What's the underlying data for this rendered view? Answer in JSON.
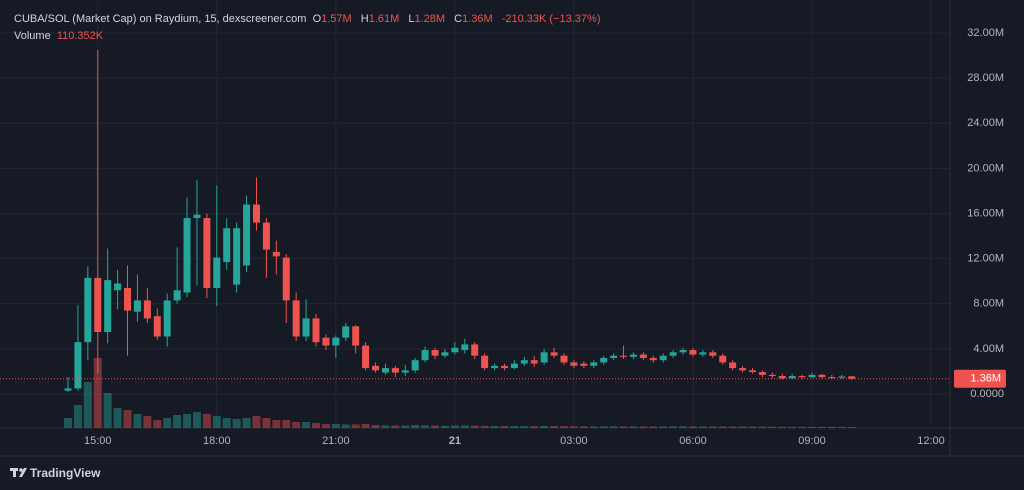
{
  "chart_data": {
    "type": "candlestick",
    "header": {
      "title": "CUBA/SOL (Market Cap) on Raydium, 15, dexscreener.com",
      "open_label": "O",
      "open": "1.57M",
      "high_label": "H",
      "high": "1.61M",
      "low_label": "L",
      "low": "1.28M",
      "close_label": "C",
      "close": "1.36M",
      "change": "-210.33K (−13.37%)",
      "volume_label": "Volume",
      "volume": "110.352K"
    },
    "categories": [
      null,
      null,
      null,
      "15:00",
      null,
      null,
      null,
      null,
      null,
      null,
      null,
      null,
      null,
      null,
      null,
      "18:00",
      null,
      null,
      null,
      null,
      null,
      null,
      null,
      null,
      null,
      null,
      null,
      "21:00",
      null,
      null,
      null,
      null,
      null,
      null,
      null,
      null,
      null,
      null,
      null,
      "21",
      null,
      null,
      null,
      null,
      null,
      null,
      null,
      null,
      null,
      null,
      null,
      "03:00",
      null,
      null,
      null,
      null,
      null,
      null,
      null,
      null,
      null,
      null,
      null,
      "06:00",
      null,
      null,
      null,
      null,
      null,
      null,
      null,
      null,
      null,
      null,
      null,
      "09:00",
      null,
      null,
      null,
      null,
      null,
      null,
      null,
      null,
      null,
      null,
      null,
      "12:00"
    ],
    "open": [
      0.3,
      0.5,
      4.6,
      10.3,
      5.5,
      9.2,
      9.4,
      7.3,
      8.3,
      6.9,
      5.1,
      8.3,
      9.0,
      15.6,
      15.6,
      9.4,
      11.7,
      9.7,
      11.4,
      16.8,
      15.2,
      12.6,
      12.1,
      8.3,
      5.1,
      6.7,
      5.0,
      4.3,
      5.0,
      6.0,
      4.3,
      2.5,
      1.9,
      2.3,
      1.9,
      2.1,
      3.0,
      3.9,
      3.4,
      3.7,
      3.9,
      4.4,
      3.4,
      2.3,
      2.5,
      2.3,
      2.7,
      3.0,
      2.8,
      3.7,
      3.4,
      2.8,
      2.7,
      2.5,
      2.8,
      3.2,
      3.4,
      3.3,
      3.5,
      3.2,
      3.0,
      3.4,
      3.7,
      3.9,
      3.5,
      3.7,
      3.4,
      2.8,
      2.3,
      2.1,
      1.95,
      1.7,
      1.6,
      1.4,
      1.6,
      1.5,
      1.7,
      1.5,
      1.45,
      1.57,
      null,
      null,
      null,
      null,
      null,
      null,
      null,
      null
    ],
    "high": [
      1.5,
      7.9,
      11.3,
      30.5,
      12.9,
      11.0,
      11.4,
      10.6,
      9.4,
      7.6,
      8.9,
      13.0,
      17.4,
      19.0,
      16.0,
      18.5,
      15.6,
      15.2,
      17.6,
      19.2,
      15.6,
      13.6,
      12.4,
      9.0,
      8.4,
      7.1,
      5.3,
      5.2,
      6.3,
      6.1,
      4.6,
      2.8,
      2.7,
      2.5,
      2.6,
      3.2,
      4.2,
      4.1,
      4.0,
      4.6,
      4.9,
      4.6,
      3.6,
      2.7,
      2.7,
      3.0,
      3.3,
      3.4,
      4.0,
      4.1,
      3.6,
      3.0,
      2.9,
      3.0,
      3.4,
      3.6,
      4.3,
      3.7,
      3.7,
      3.4,
      3.6,
      3.9,
      4.1,
      4.1,
      3.9,
      3.9,
      3.6,
      3.0,
      2.5,
      2.3,
      2.1,
      1.9,
      1.8,
      1.8,
      1.7,
      1.9,
      1.8,
      1.7,
      1.7,
      1.61,
      null,
      null,
      null,
      null,
      null,
      null,
      null,
      null
    ],
    "low": [
      0.2,
      0.3,
      3.0,
      1.8,
      4.5,
      7.5,
      3.4,
      6.4,
      6.3,
      4.8,
      4.2,
      8.0,
      8.6,
      9.6,
      8.5,
      7.8,
      11.0,
      9.0,
      10.8,
      14.5,
      10.3,
      10.6,
      6.3,
      4.7,
      4.7,
      4.2,
      3.9,
      3.2,
      4.7,
      3.6,
      2.1,
      1.9,
      1.7,
      1.5,
      1.6,
      1.9,
      2.8,
      3.1,
      3.2,
      3.5,
      3.6,
      3.1,
      2.1,
      2.1,
      2.1,
      2.2,
      2.5,
      2.4,
      2.6,
      3.2,
      2.6,
      2.3,
      2.3,
      2.3,
      2.6,
      3.0,
      3.1,
      3.1,
      3.0,
      2.8,
      2.8,
      3.2,
      3.5,
      3.3,
      3.3,
      3.2,
      2.6,
      2.1,
      1.9,
      1.8,
      1.5,
      1.4,
      1.3,
      1.3,
      1.3,
      1.4,
      1.4,
      1.3,
      1.35,
      1.28,
      null,
      null,
      null,
      null,
      null,
      null,
      null,
      null
    ],
    "close": [
      0.5,
      4.6,
      10.3,
      5.5,
      10.1,
      9.8,
      7.4,
      8.3,
      6.7,
      5.1,
      8.3,
      9.2,
      15.6,
      15.9,
      9.4,
      12.1,
      14.7,
      14.7,
      16.8,
      15.2,
      12.8,
      12.2,
      8.3,
      5.1,
      6.7,
      4.6,
      4.3,
      5.0,
      6.0,
      4.3,
      2.3,
      2.1,
      2.3,
      1.9,
      2.1,
      3.0,
      3.9,
      3.4,
      3.7,
      4.1,
      4.4,
      3.4,
      2.3,
      2.5,
      2.3,
      2.7,
      3.0,
      2.7,
      3.7,
      3.4,
      2.8,
      2.5,
      2.5,
      2.8,
      3.2,
      3.4,
      3.3,
      3.5,
      3.2,
      3.0,
      3.4,
      3.7,
      3.9,
      3.5,
      3.7,
      3.4,
      2.8,
      2.3,
      2.1,
      1.95,
      1.7,
      1.6,
      1.4,
      1.6,
      1.5,
      1.7,
      1.5,
      1.45,
      1.55,
      1.36,
      null,
      null,
      null,
      null,
      null,
      null,
      null,
      null
    ],
    "volume": [
      1000,
      2300,
      4600,
      7000,
      3500,
      2000,
      1800,
      1400,
      1200,
      800,
      1000,
      1300,
      1400,
      1600,
      1400,
      1200,
      1000,
      900,
      1000,
      1200,
      1000,
      800,
      800,
      600,
      600,
      500,
      400,
      400,
      350,
      350,
      400,
      300,
      250,
      250,
      250,
      300,
      280,
      250,
      220,
      250,
      260,
      240,
      220,
      200,
      200,
      200,
      190,
      180,
      200,
      190,
      180,
      170,
      170,
      160,
      170,
      170,
      160,
      160,
      150,
      150,
      160,
      170,
      170,
      160,
      150,
      150,
      150,
      140,
      140,
      130,
      130,
      130,
      120,
      120,
      120,
      120,
      115,
      115,
      112,
      110.352,
      null,
      null,
      null,
      null,
      null,
      null,
      null,
      null
    ],
    "up_color": "#26a69a",
    "down_color": "#ef5350",
    "ylim": [
      -3.01,
      34.22
    ],
    "yticks": [
      {
        "value": 0,
        "label": "0.0000"
      },
      {
        "value": 4,
        "label": "4.00M"
      },
      {
        "value": 8,
        "label": "8.00M"
      },
      {
        "value": 12,
        "label": "12.00M"
      },
      {
        "value": 16,
        "label": "16.00M"
      },
      {
        "value": 20,
        "label": "20.00M"
      },
      {
        "value": 24,
        "label": "24.00M"
      },
      {
        "value": 28,
        "label": "28.00M"
      },
      {
        "value": 32,
        "label": "32.00M"
      }
    ],
    "last_price": {
      "value": 1.36,
      "label": "1.36M"
    },
    "grid": true,
    "branding": "TradingView"
  }
}
